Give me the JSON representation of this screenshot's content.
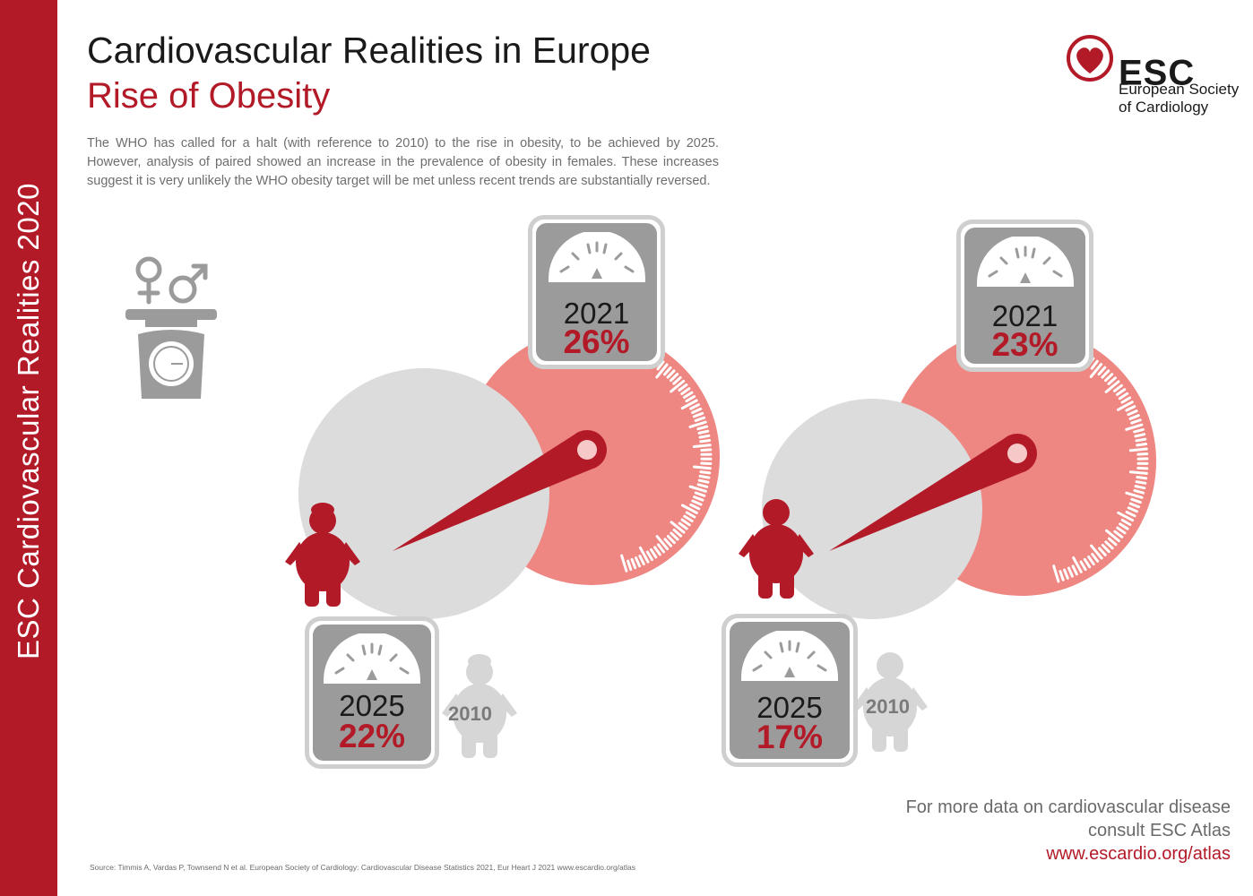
{
  "side_title": "ESC Cardiovascular Realities 2020",
  "header": {
    "title": "Cardiovascular Realities in Europe",
    "subtitle": "Rise of Obesity",
    "intro": "The WHO has called for a halt (with reference to 2010) to the rise in obesity, to be achieved by 2025. However, analysis of paired showed an increase in the prevalence of obesity in females. These increases suggest it is very unlikely the WHO obesity target will be met unless recent trends are substantially reversed."
  },
  "logo": {
    "abbreviation": "ESC",
    "name_line1": "European Society",
    "name_line2": "of Cardiology"
  },
  "colors": {
    "brand_red": "#b31a28",
    "dial_pink": "#ee8682",
    "dial_grey": "#dcdcdc",
    "scale_grey": "#9b9b9b"
  },
  "icons": {
    "gender_icon": "female-male-symbols-on-kitchen-scale",
    "female_figure": "obese-female-silhouette",
    "male_figure": "obese-male-silhouette",
    "scale_dial": "bathroom-scale-dial"
  },
  "chart_data": [
    {
      "type": "gauge",
      "subject": "female",
      "baseline_label": "2010",
      "points": [
        {
          "year": "2021",
          "value": 26,
          "label": "26%"
        },
        {
          "year": "2025",
          "value": 22,
          "label": "22%"
        }
      ]
    },
    {
      "type": "gauge",
      "subject": "male",
      "baseline_label": "2010",
      "points": [
        {
          "year": "2021",
          "value": 23,
          "label": "23%"
        },
        {
          "year": "2025",
          "value": 17,
          "label": "17%"
        }
      ]
    }
  ],
  "footer": {
    "more_line1": "For more data on cardiovascular disease",
    "more_line2": "consult ESC Atlas",
    "link": "www.escardio.org/atlas",
    "source": "Source: Timmis A, Vardas P, Townsend N et al. European Society of Cardiology: Cardiovascular Disease Statistics 2021, Eur Heart J 2021 www.escardio.org/atlas"
  }
}
